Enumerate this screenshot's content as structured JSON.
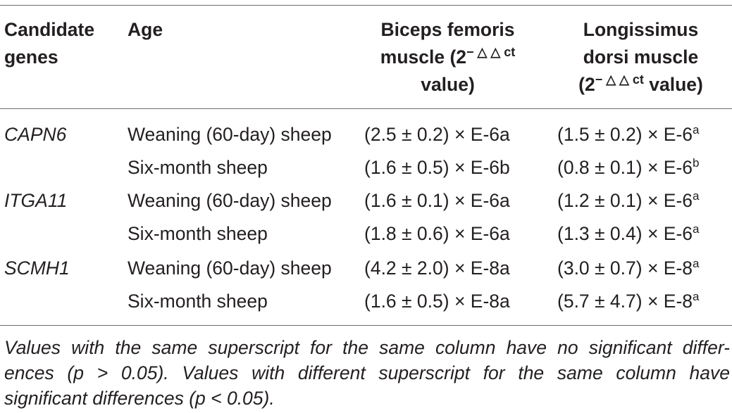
{
  "table": {
    "headers": {
      "gene": [
        "Candidate",
        "genes"
      ],
      "age": "Age",
      "bf": {
        "line1": "Biceps femoris",
        "line2_pre": "muscle (2",
        "sup": "− △ △ ct",
        "line3": "value)"
      },
      "ld": {
        "line1": "Longissimus",
        "line2": "dorsi muscle",
        "line3_pre": "(2",
        "sup": "− △ △ ct",
        "line3_post": " value)"
      }
    },
    "rows": [
      {
        "gene": "CAPN6",
        "age": "Weaning (60-day) sheep",
        "bf": "(2.5 ± 0.2) × E-6a",
        "ld": "(1.5 ± 0.2) × E-6",
        "ld_sup": "a"
      },
      {
        "gene": "",
        "age": "Six-month sheep",
        "bf": "(1.6 ± 0.5) × E-6b",
        "ld": "(0.8 ± 0.1) × E-6",
        "ld_sup": "b"
      },
      {
        "gene": "ITGA11",
        "age": "Weaning (60-day) sheep",
        "bf": "(1.6 ± 0.1) × E-6a",
        "ld": "(1.2 ± 0.1) × E-6",
        "ld_sup": "a"
      },
      {
        "gene": "",
        "age": "Six-month sheep",
        "bf": "(1.8 ± 0.6) × E-6a",
        "ld": "(1.3 ± 0.4) × E-6",
        "ld_sup": "a"
      },
      {
        "gene": "SCMH1",
        "age": "Weaning (60-day) sheep",
        "bf": "(4.2 ± 2.0) × E-8a",
        "ld": "(3.0 ± 0.7) × E-8",
        "ld_sup": "a"
      },
      {
        "gene": "",
        "age": "Six-month sheep",
        "bf": "(1.6 ± 0.5) × E-8a",
        "ld": "(5.7 ± 4.7) × E-8",
        "ld_sup": "a"
      }
    ]
  },
  "footnote": {
    "line1": "Values with the same superscript for the same column have no significant differ-",
    "line2": "ences (p > 0.05). Values with different superscript for the same column have",
    "line3": "significant differences (p < 0.05)."
  }
}
